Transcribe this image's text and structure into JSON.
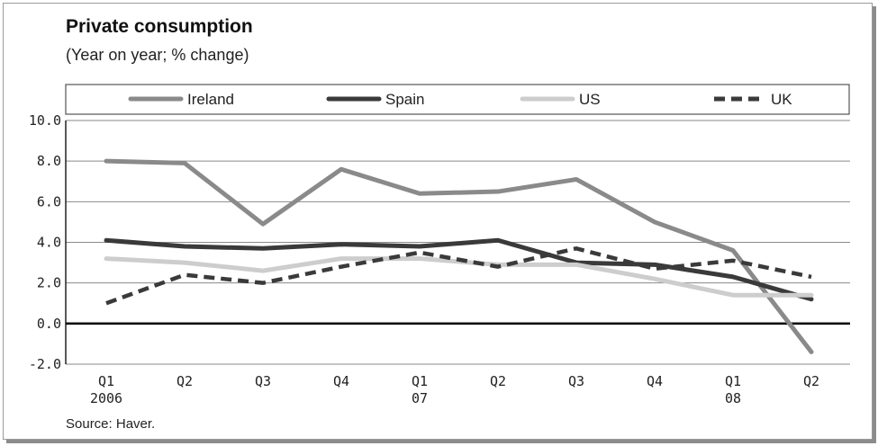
{
  "chart_data": {
    "type": "line",
    "title": "Private consumption",
    "subtitle": "(Year on year; % change)",
    "source": "Source: Haver.",
    "categories": [
      "Q1",
      "Q2",
      "Q3",
      "Q4",
      "Q1",
      "Q2",
      "Q3",
      "Q4",
      "Q1",
      "Q2"
    ],
    "year_labels": [
      "2006",
      "",
      "",
      "",
      "07",
      "",
      "",
      "",
      "08",
      ""
    ],
    "ylim": [
      -2.0,
      10.0
    ],
    "yticks": [
      "10.0",
      "8.0",
      "6.0",
      "4.0",
      "2.0",
      "0.0",
      "-2.0"
    ],
    "legend_position": "top",
    "series": [
      {
        "name": "Ireland",
        "color": "#8a8a8a",
        "style": "solid",
        "values": [
          8.0,
          7.9,
          4.9,
          7.6,
          6.4,
          6.5,
          7.1,
          5.0,
          3.6,
          -1.4
        ]
      },
      {
        "name": "Spain",
        "color": "#3a3a3a",
        "style": "solid",
        "values": [
          4.1,
          3.8,
          3.7,
          3.9,
          3.8,
          4.1,
          3.0,
          2.9,
          2.3,
          1.2
        ]
      },
      {
        "name": "US",
        "color": "#cdcdcd",
        "style": "solid",
        "values": [
          3.2,
          3.0,
          2.6,
          3.2,
          3.2,
          2.9,
          2.9,
          2.2,
          1.4,
          1.4
        ]
      },
      {
        "name": "UK",
        "color": "#3a3a3a",
        "style": "dashed",
        "values": [
          1.0,
          2.4,
          2.0,
          2.8,
          3.5,
          2.8,
          3.7,
          2.7,
          3.1,
          2.3
        ]
      }
    ]
  }
}
